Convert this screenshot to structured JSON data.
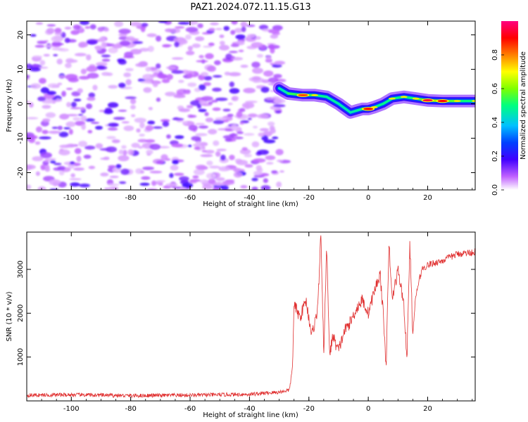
{
  "figure": {
    "title": "PAZ1.2024.072.11.15.G13"
  },
  "chart_data": [
    {
      "type": "heatmap",
      "panel": "top",
      "xlabel": "Height of straight line (km)",
      "ylabel": "Frequency (Hz)",
      "xlim": [
        -115,
        36
      ],
      "ylim": [
        -25,
        24
      ],
      "xticks": [
        -100,
        -80,
        -60,
        -40,
        -20,
        0,
        20
      ],
      "yticks": [
        -20,
        -10,
        0,
        10,
        20
      ],
      "colorbar": {
        "label": "Normalized spectral amplitude",
        "range": [
          0,
          1
        ],
        "ticks": [
          0.0,
          0.2,
          0.4,
          0.6,
          0.8
        ],
        "tick_labels": [
          "0.0",
          "0.2",
          "0.4",
          "0.6",
          "0.8"
        ],
        "colormap": [
          "#ffffff",
          "#c060ff",
          "#4000ff",
          "#0040ff",
          "#00c0ff",
          "#00ff80",
          "#80ff00",
          "#ffff00",
          "#ff8000",
          "#ff0000",
          "#ff0080"
        ]
      },
      "noise_region": {
        "x": [
          -115,
          -28
        ],
        "y": [
          -25,
          24
        ],
        "level": "low (0.0-0.2)"
      },
      "signal_track": {
        "x": [
          -30,
          -27,
          -22,
          -18,
          -14,
          -10,
          -6,
          -4,
          -2,
          0,
          2,
          5,
          8,
          12,
          16,
          20,
          25,
          30,
          36
        ],
        "y": [
          4.5,
          3,
          2.5,
          2.5,
          2,
          0,
          -2.5,
          -2,
          -1.5,
          -1.5,
          -1,
          0,
          1.5,
          2,
          1.5,
          1,
          0.8,
          0.8,
          0.8
        ],
        "amplitude": [
          0.35,
          0.4,
          0.85,
          0.5,
          0.45,
          0.4,
          0.35,
          0.4,
          0.45,
          0.9,
          0.5,
          0.45,
          0.5,
          0.55,
          0.5,
          0.95,
          0.9,
          0.55,
          0.5
        ]
      }
    },
    {
      "type": "line",
      "panel": "bottom",
      "xlabel": "Height of straight line (km)",
      "ylabel": "SNR (10 * v/v)",
      "xlim": [
        -115,
        36
      ],
      "ylim": [
        0,
        3850
      ],
      "xticks": [
        -100,
        -80,
        -60,
        -40,
        -20,
        0,
        20
      ],
      "yticks": [
        1000,
        2000,
        3000
      ],
      "color": "#e03030",
      "series": [
        {
          "x": [
            -115,
            -100,
            -80,
            -60,
            -40,
            -30,
            -26.5,
            -25.5,
            -25,
            -23,
            -21,
            -19,
            -17,
            -16,
            -15,
            -14,
            -13,
            -12,
            -11,
            -10,
            -8,
            -6,
            -4,
            -2,
            0,
            2,
            4,
            5,
            6,
            7,
            8,
            10,
            12,
            13,
            14,
            15,
            16,
            18,
            20,
            25,
            30,
            36
          ],
          "y": [
            130,
            140,
            120,
            130,
            150,
            200,
            250,
            800,
            2200,
            1900,
            2300,
            1500,
            2100,
            3800,
            1100,
            3500,
            1000,
            1500,
            1300,
            1150,
            1600,
            1800,
            2100,
            2300,
            2000,
            2500,
            2900,
            2000,
            800,
            3600,
            2300,
            3000,
            2200,
            900,
            3600,
            1500,
            2400,
            3000,
            3100,
            3200,
            3350,
            3400
          ]
        }
      ]
    }
  ]
}
